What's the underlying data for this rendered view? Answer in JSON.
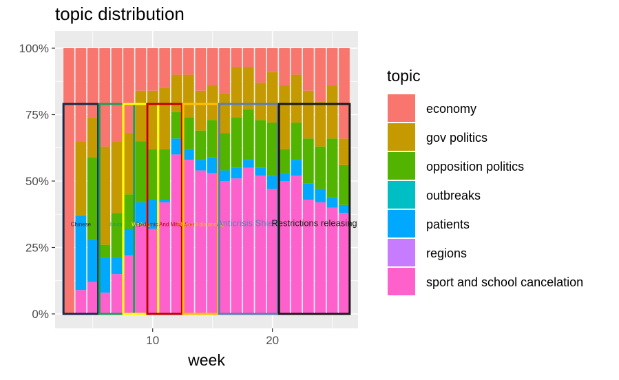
{
  "chart_data": {
    "type": "bar",
    "stacked": true,
    "title": "topic distribution",
    "xlabel": "week",
    "ylabel": "",
    "x": [
      3,
      4,
      5,
      6,
      7,
      8,
      9,
      10,
      11,
      12,
      13,
      14,
      15,
      16,
      17,
      18,
      19,
      20,
      21,
      22,
      23,
      24,
      25,
      26
    ],
    "xticks": [
      10,
      20
    ],
    "xlim": [
      1.85,
      27.15
    ],
    "ylim": [
      0,
      1
    ],
    "yticks": [
      0,
      0.25,
      0.5,
      0.75,
      1.0
    ],
    "ytick_labels": [
      "0%",
      "25%",
      "50%",
      "75%",
      "100%"
    ],
    "grid": true,
    "legend": {
      "title": "topic",
      "position": "right"
    },
    "series": [
      {
        "name": "sport and school cancelation",
        "color": "#FF61CC",
        "values": [
          0.0,
          0.09,
          0.12,
          0.08,
          0.15,
          0.22,
          0.33,
          0.32,
          0.42,
          0.6,
          0.58,
          0.54,
          0.53,
          0.5,
          0.51,
          0.55,
          0.52,
          0.47,
          0.5,
          0.52,
          0.43,
          0.42,
          0.4,
          0.38
        ]
      },
      {
        "name": "regions",
        "color": "#C77CFF",
        "values": [
          0.0,
          0.0,
          0.0,
          0.0,
          0.0,
          0.0,
          0.0,
          0.0,
          0.0,
          0.0,
          0.0,
          0.0,
          0.0,
          0.0,
          0.0,
          0.0,
          0.0,
          0.0,
          0.0,
          0.0,
          0.0,
          0.0,
          0.0,
          0.0
        ]
      },
      {
        "name": "patients",
        "color": "#00A9FF",
        "values": [
          0.0,
          0.28,
          0.16,
          0.13,
          0.06,
          0.1,
          0.09,
          0.11,
          0.01,
          0.06,
          0.04,
          0.04,
          0.06,
          0.04,
          0.04,
          0.03,
          0.03,
          0.05,
          0.03,
          0.06,
          0.06,
          0.05,
          0.04,
          0.03
        ]
      },
      {
        "name": "outbreaks",
        "color": "#00BFC4",
        "values": [
          0.0,
          0.0,
          0.0,
          0.0,
          0.0,
          0.0,
          0.0,
          0.0,
          0.0,
          0.0,
          0.0,
          0.0,
          0.0,
          0.0,
          0.0,
          0.0,
          0.0,
          0.0,
          0.0,
          0.0,
          0.0,
          0.0,
          0.0,
          0.0
        ]
      },
      {
        "name": "opposition politics",
        "color": "#53B400",
        "values": [
          0.0,
          0.0,
          0.31,
          0.05,
          0.17,
          0.13,
          0.23,
          0.19,
          0.19,
          0.1,
          0.12,
          0.11,
          0.14,
          0.14,
          0.19,
          0.19,
          0.18,
          0.2,
          0.09,
          0.14,
          0.17,
          0.16,
          0.22,
          0.15
        ]
      },
      {
        "name": "gov politics",
        "color": "#C49A00",
        "values": [
          0.0,
          0.28,
          0.15,
          0.37,
          0.27,
          0.23,
          0.19,
          0.22,
          0.23,
          0.14,
          0.16,
          0.15,
          0.13,
          0.15,
          0.19,
          0.16,
          0.14,
          0.19,
          0.24,
          0.18,
          0.18,
          0.17,
          0.2,
          0.1
        ]
      },
      {
        "name": "economy",
        "color": "#F8766D",
        "values": [
          1.0,
          0.35,
          0.26,
          0.37,
          0.35,
          0.32,
          0.16,
          0.16,
          0.15,
          0.1,
          0.1,
          0.16,
          0.14,
          0.17,
          0.07,
          0.07,
          0.13,
          0.09,
          0.14,
          0.1,
          0.16,
          0.2,
          0.14,
          0.34
        ]
      }
    ],
    "legend_order": [
      "economy",
      "gov politics",
      "opposition politics",
      "outbreaks",
      "patients",
      "regions",
      "sport and school cancelation"
    ],
    "annotations": [
      {
        "text": "Chinese",
        "x_start": 3,
        "x_end": 5,
        "ylim": [
          0,
          0.79
        ],
        "color": "#1A2A4A"
      },
      {
        "text": "Italian",
        "x_start": 6,
        "x_end": 8,
        "ylim": [
          0,
          0.79
        ],
        "color": "#1E9E5A"
      },
      {
        "text": "Waiting",
        "x_start": 8,
        "x_end": 10,
        "ylim": [
          0,
          0.79
        ],
        "color": "#FFFF00"
      },
      {
        "text": "Epidemic And Mitigation",
        "x_start": 10,
        "x_end": 12,
        "ylim": [
          0,
          0.79
        ],
        "color": "#C00000"
      },
      {
        "text": "Physical distancing",
        "x_start": 13,
        "x_end": 15,
        "ylim": [
          0,
          0.79
        ],
        "color": "#FFC000"
      },
      {
        "text": "Anticrisis Shield",
        "x_start": 16,
        "x_end": 20,
        "ylim": [
          0,
          0.79
        ],
        "color": "#5B7DB1"
      },
      {
        "text": "Restrictions releasing",
        "x_start": 21,
        "x_end": 26,
        "ylim": [
          0,
          0.79
        ],
        "color": "#1A1A1A"
      }
    ]
  }
}
